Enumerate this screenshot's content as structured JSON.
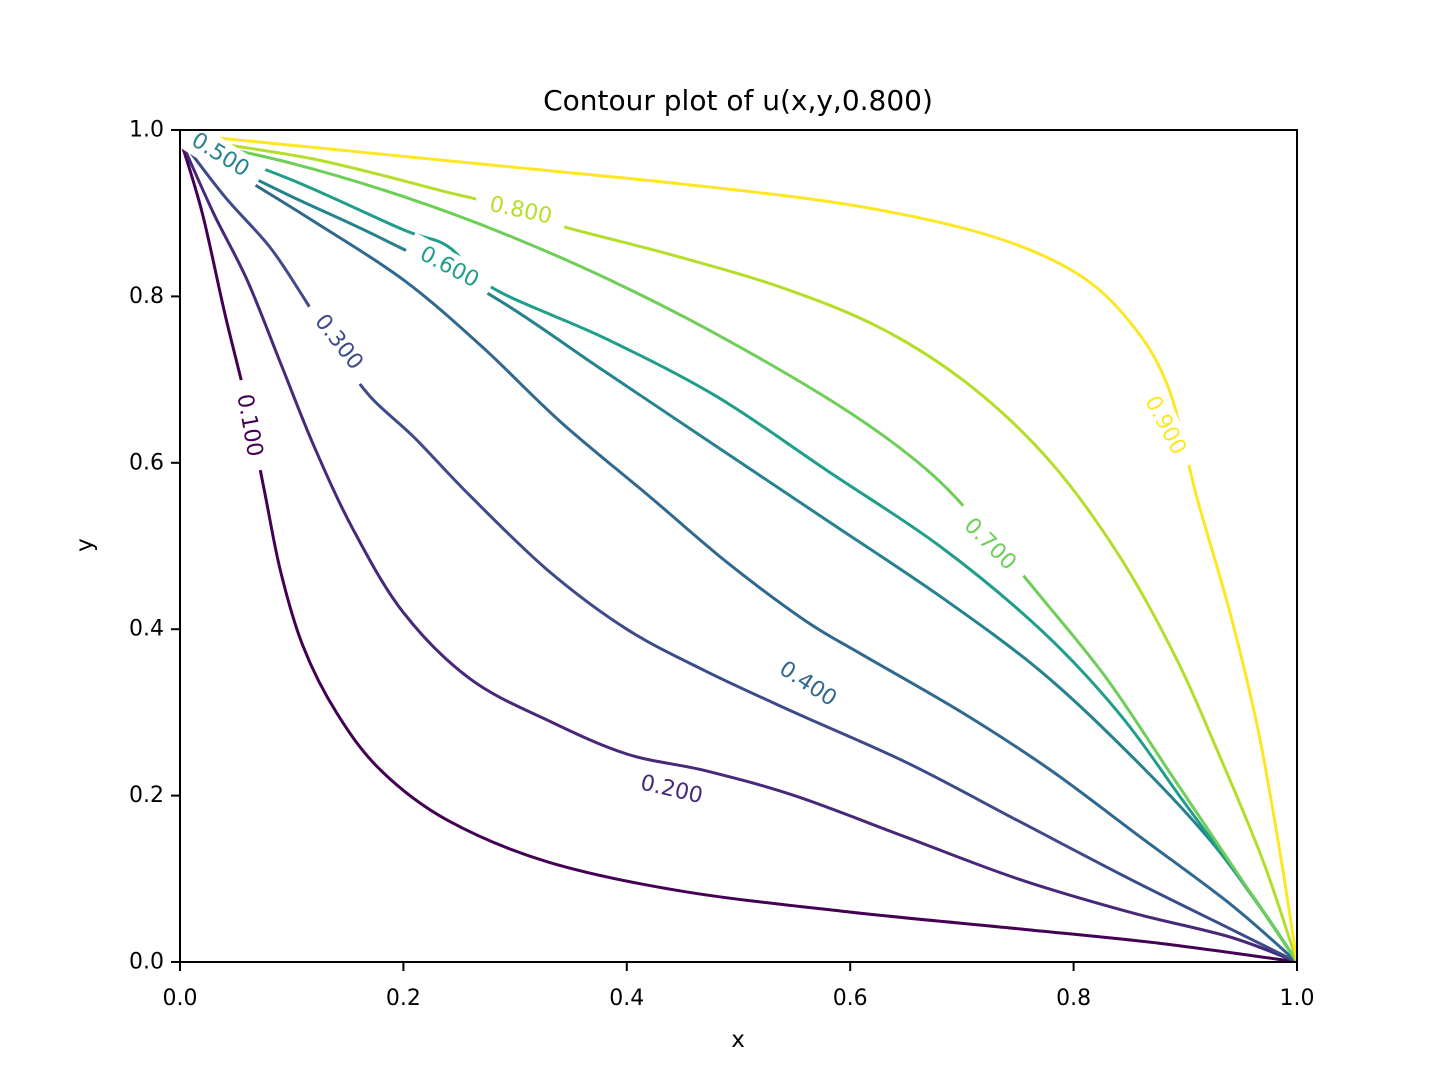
{
  "chart_data": {
    "type": "contour",
    "title": "Contour plot of u(x,y,0.800)",
    "xlabel": "x",
    "ylabel": "y",
    "xlim": [
      0.0,
      1.0
    ],
    "ylim": [
      0.0,
      1.0
    ],
    "grid": false,
    "x_ticks": [
      "0.0",
      "0.2",
      "0.4",
      "0.6",
      "0.8",
      "1.0"
    ],
    "y_ticks": [
      "0.0",
      "0.2",
      "0.4",
      "0.6",
      "0.8",
      "1.0"
    ],
    "contours": [
      {
        "level": "0.100",
        "color": "#440154",
        "points": [
          [
            0.0,
            0.99
          ],
          [
            0.02,
            0.9
          ],
          [
            0.04,
            0.78
          ],
          [
            0.06,
            0.67
          ],
          [
            0.075,
            0.57
          ],
          [
            0.09,
            0.47
          ],
          [
            0.11,
            0.38
          ],
          [
            0.14,
            0.3
          ],
          [
            0.18,
            0.23
          ],
          [
            0.24,
            0.17
          ],
          [
            0.33,
            0.12
          ],
          [
            0.45,
            0.085
          ],
          [
            0.6,
            0.06
          ],
          [
            0.75,
            0.04
          ],
          [
            0.88,
            0.022
          ],
          [
            1.0,
            0.0
          ]
        ],
        "label_pos": [
          0.062,
          0.645
        ],
        "label_angle": 80
      },
      {
        "level": "0.200",
        "color": "#482878",
        "points": [
          [
            0.0,
            0.99
          ],
          [
            0.03,
            0.9
          ],
          [
            0.06,
            0.82
          ],
          [
            0.09,
            0.72
          ],
          [
            0.12,
            0.62
          ],
          [
            0.155,
            0.52
          ],
          [
            0.2,
            0.42
          ],
          [
            0.26,
            0.34
          ],
          [
            0.33,
            0.29
          ],
          [
            0.4,
            0.25
          ],
          [
            0.47,
            0.23
          ],
          [
            0.55,
            0.2
          ],
          [
            0.65,
            0.15
          ],
          [
            0.75,
            0.1
          ],
          [
            0.85,
            0.06
          ],
          [
            0.94,
            0.03
          ],
          [
            1.0,
            0.0
          ]
        ],
        "label_pos": [
          0.44,
          0.207
        ],
        "label_angle": 13
      },
      {
        "level": "0.300",
        "color": "#3e4a89",
        "points": [
          [
            0.0,
            0.99
          ],
          [
            0.04,
            0.92
          ],
          [
            0.08,
            0.86
          ],
          [
            0.11,
            0.8
          ],
          [
            0.14,
            0.735
          ],
          [
            0.17,
            0.68
          ],
          [
            0.21,
            0.63
          ],
          [
            0.26,
            0.56
          ],
          [
            0.33,
            0.47
          ],
          [
            0.4,
            0.4
          ],
          [
            0.47,
            0.35
          ],
          [
            0.55,
            0.3
          ],
          [
            0.65,
            0.24
          ],
          [
            0.75,
            0.17
          ],
          [
            0.85,
            0.1
          ],
          [
            0.94,
            0.04
          ],
          [
            1.0,
            0.0
          ]
        ],
        "label_pos": [
          0.142,
          0.745
        ],
        "label_angle": 52
      },
      {
        "level": "0.400",
        "color": "#31688e",
        "points": [
          [
            0.0,
            0.99
          ],
          [
            0.06,
            0.94
          ],
          [
            0.12,
            0.89
          ],
          [
            0.2,
            0.82
          ],
          [
            0.27,
            0.74
          ],
          [
            0.34,
            0.65
          ],
          [
            0.42,
            0.56
          ],
          [
            0.49,
            0.48
          ],
          [
            0.56,
            0.41
          ],
          [
            0.61,
            0.37
          ],
          [
            0.7,
            0.3
          ],
          [
            0.78,
            0.23
          ],
          [
            0.86,
            0.15
          ],
          [
            0.94,
            0.07
          ],
          [
            1.0,
            0.0
          ]
        ],
        "label_pos": [
          0.562,
          0.334
        ],
        "label_angle": 33
      },
      {
        "level": "0.500",
        "color": "#26828e",
        "points": [
          [
            0.0,
            0.99
          ],
          [
            0.04,
            0.96
          ],
          [
            0.1,
            0.92
          ],
          [
            0.18,
            0.87
          ],
          [
            0.28,
            0.8
          ],
          [
            0.38,
            0.71
          ],
          [
            0.48,
            0.62
          ],
          [
            0.58,
            0.53
          ],
          [
            0.68,
            0.44
          ],
          [
            0.77,
            0.35
          ],
          [
            0.85,
            0.25
          ],
          [
            0.92,
            0.15
          ],
          [
            0.97,
            0.06
          ],
          [
            1.0,
            0.0
          ]
        ],
        "label_pos": [
          0.036,
          0.97
        ],
        "label_angle": 32
      },
      {
        "level": "0.600",
        "color": "#1f9e89",
        "points": [
          [
            0.0,
            0.99
          ],
          [
            0.1,
            0.94
          ],
          [
            0.2,
            0.88
          ],
          [
            0.24,
            0.86
          ],
          [
            0.28,
            0.81
          ],
          [
            0.38,
            0.75
          ],
          [
            0.48,
            0.68
          ],
          [
            0.58,
            0.59
          ],
          [
            0.68,
            0.5
          ],
          [
            0.77,
            0.4
          ],
          [
            0.84,
            0.3
          ],
          [
            0.9,
            0.19
          ],
          [
            0.96,
            0.08
          ],
          [
            1.0,
            0.0
          ]
        ],
        "label_pos": [
          0.241,
          0.835
        ],
        "label_angle": 28
      },
      {
        "level": "0.700",
        "color": "#6ece58",
        "points": [
          [
            0.0,
            0.99
          ],
          [
            0.1,
            0.96
          ],
          [
            0.2,
            0.92
          ],
          [
            0.3,
            0.87
          ],
          [
            0.4,
            0.81
          ],
          [
            0.5,
            0.74
          ],
          [
            0.6,
            0.66
          ],
          [
            0.67,
            0.59
          ],
          [
            0.72,
            0.52
          ],
          [
            0.77,
            0.44
          ],
          [
            0.83,
            0.34
          ],
          [
            0.89,
            0.22
          ],
          [
            0.95,
            0.1
          ],
          [
            1.0,
            0.0
          ]
        ],
        "label_pos": [
          0.725,
          0.502
        ],
        "label_angle": 45
      },
      {
        "level": "0.800",
        "color": "#b5de2b",
        "points": [
          [
            0.0,
            0.99
          ],
          [
            0.12,
            0.965
          ],
          [
            0.24,
            0.925
          ],
          [
            0.27,
            0.915
          ],
          [
            0.34,
            0.885
          ],
          [
            0.44,
            0.85
          ],
          [
            0.54,
            0.81
          ],
          [
            0.63,
            0.76
          ],
          [
            0.71,
            0.69
          ],
          [
            0.78,
            0.6
          ],
          [
            0.84,
            0.49
          ],
          [
            0.89,
            0.37
          ],
          [
            0.93,
            0.25
          ],
          [
            0.97,
            0.12
          ],
          [
            1.0,
            0.0
          ]
        ],
        "label_pos": [
          0.305,
          0.903
        ],
        "label_angle": 12
      },
      {
        "level": "0.900",
        "color": "#fde725",
        "points": [
          [
            0.0,
            0.995
          ],
          [
            0.15,
            0.975
          ],
          [
            0.3,
            0.955
          ],
          [
            0.45,
            0.935
          ],
          [
            0.6,
            0.91
          ],
          [
            0.72,
            0.875
          ],
          [
            0.8,
            0.83
          ],
          [
            0.85,
            0.77
          ],
          [
            0.885,
            0.69
          ],
          [
            0.91,
            0.56
          ],
          [
            0.94,
            0.42
          ],
          [
            0.965,
            0.28
          ],
          [
            0.985,
            0.13
          ],
          [
            1.0,
            0.0
          ]
        ],
        "label_pos": [
          0.882,
          0.645
        ],
        "label_angle": 62
      }
    ]
  }
}
